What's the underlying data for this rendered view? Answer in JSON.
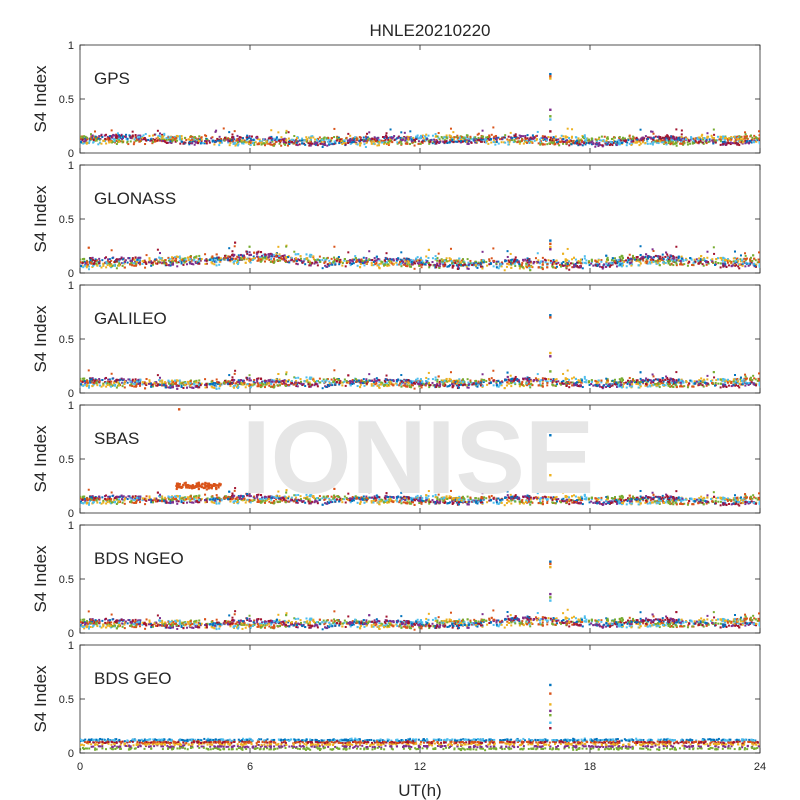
{
  "title": "HNLE20210220",
  "watermark": "IONISE",
  "xlabel": "UT(h)",
  "xlim": [
    0,
    24
  ],
  "xticks": [
    0,
    6,
    12,
    18,
    24
  ],
  "ylabel": "S4 Index",
  "ylim": [
    0,
    1
  ],
  "yticks": [
    0,
    0.5,
    1
  ],
  "colors": [
    "#0072BD",
    "#D95319",
    "#EDB120",
    "#7E2F8E",
    "#77AC30",
    "#4DBEEE",
    "#A2142F"
  ],
  "chart_data": [
    {
      "type": "scatter",
      "label": "GPS",
      "xlabel": "",
      "ylabel": "S4 Index",
      "xlim": [
        0,
        24
      ],
      "ylim": [
        0,
        1
      ],
      "baseline": [
        [
          0,
          0.12
        ],
        [
          2,
          0.13
        ],
        [
          6,
          0.11
        ],
        [
          10,
          0.11
        ],
        [
          14,
          0.13
        ],
        [
          18,
          0.11
        ],
        [
          22,
          0.12
        ],
        [
          24,
          0.12
        ]
      ],
      "spread": 0.06,
      "spikes": [
        {
          "x": 16.6,
          "values": [
            0.73,
            0.71,
            0.69,
            0.4,
            0.34,
            0.31,
            0.2
          ]
        }
      ],
      "bumps": []
    },
    {
      "type": "scatter",
      "label": "GLONASS",
      "xlabel": "",
      "ylabel": "S4 Index",
      "xlim": [
        0,
        24
      ],
      "ylim": [
        0,
        1
      ],
      "baseline": [
        [
          0,
          0.09
        ],
        [
          2,
          0.1
        ],
        [
          5.5,
          0.13
        ],
        [
          6.5,
          0.15
        ],
        [
          9,
          0.1
        ],
        [
          11,
          0.1
        ],
        [
          14,
          0.09
        ],
        [
          17,
          0.08
        ],
        [
          20,
          0.12
        ],
        [
          22,
          0.11
        ],
        [
          24,
          0.09
        ]
      ],
      "spread": 0.08,
      "spikes": [
        {
          "x": 16.6,
          "values": [
            0.3,
            0.27,
            0.24,
            0.22
          ]
        }
      ],
      "bumps": []
    },
    {
      "type": "scatter",
      "label": "GALILEO",
      "xlabel": "",
      "ylabel": "S4 Index",
      "xlim": [
        0,
        24
      ],
      "ylim": [
        0,
        1
      ],
      "baseline": [
        [
          0,
          0.1
        ],
        [
          4,
          0.08
        ],
        [
          8,
          0.1
        ],
        [
          12,
          0.09
        ],
        [
          16,
          0.1
        ],
        [
          20,
          0.09
        ],
        [
          24,
          0.1
        ]
      ],
      "spread": 0.06,
      "spikes": [
        {
          "x": 16.6,
          "values": [
            0.72,
            0.7,
            0.37,
            0.34,
            0.2
          ]
        }
      ],
      "bumps": []
    },
    {
      "type": "scatter",
      "label": "SBAS",
      "xlabel": "",
      "ylabel": "S4 Index",
      "xlim": [
        0,
        24
      ],
      "ylim": [
        0,
        1
      ],
      "baseline": [
        [
          0,
          0.12
        ],
        [
          6,
          0.13
        ],
        [
          12,
          0.12
        ],
        [
          18,
          0.12
        ],
        [
          24,
          0.11
        ]
      ],
      "spread": 0.05,
      "spikes": [
        {
          "x": 16.6,
          "values": [
            0.72,
            0.51,
            0.35
          ]
        }
      ],
      "bumps": [
        {
          "x0": 3.4,
          "x1": 5.0,
          "y": 0.25,
          "spread": 0.08
        }
      ],
      "outliers": [
        {
          "x": 3.5,
          "y": 0.96
        },
        {
          "x": 12.9,
          "y": 0.22
        }
      ]
    },
    {
      "type": "scatter",
      "label": "BDS NGEO",
      "xlabel": "",
      "ylabel": "S4 Index",
      "xlim": [
        0,
        24
      ],
      "ylim": [
        0,
        1
      ],
      "baseline": [
        [
          0,
          0.09
        ],
        [
          4,
          0.08
        ],
        [
          8,
          0.09
        ],
        [
          12,
          0.08
        ],
        [
          16,
          0.11
        ],
        [
          20,
          0.09
        ],
        [
          24,
          0.1
        ]
      ],
      "spread": 0.06,
      "spikes": [
        {
          "x": 16.6,
          "values": [
            0.66,
            0.64,
            0.61,
            0.36,
            0.33,
            0.3
          ]
        }
      ],
      "bumps": []
    },
    {
      "type": "scatter",
      "label": "BDS GEO",
      "xlabel": "UT(h)",
      "ylabel": "S4 Index",
      "xlim": [
        0,
        24
      ],
      "ylim": [
        0,
        1
      ],
      "bands": [
        0.12,
        0.1,
        0.08,
        0.06,
        0.04
      ],
      "spread": 0.015,
      "spikes": [
        {
          "x": 16.6,
          "values": [
            0.63,
            0.55,
            0.45,
            0.39,
            0.35,
            0.28,
            0.23
          ]
        }
      ],
      "bumps": []
    }
  ]
}
